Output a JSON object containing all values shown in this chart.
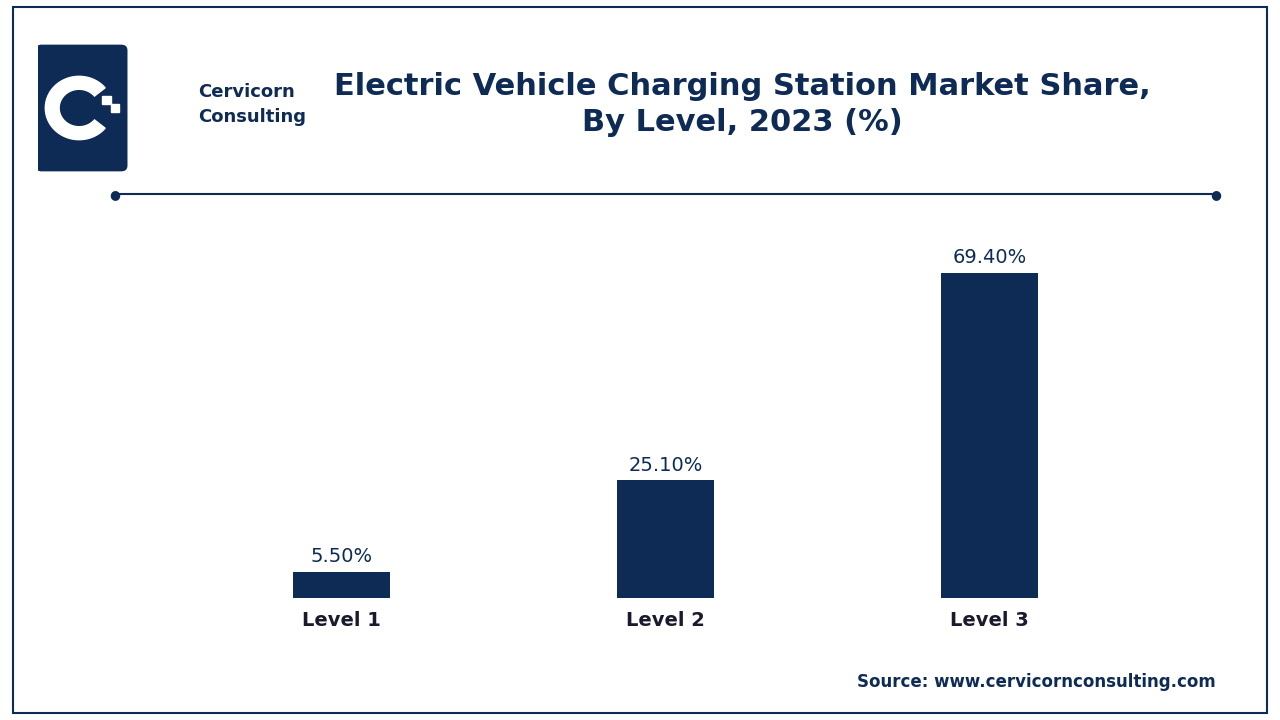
{
  "title": "Electric Vehicle Charging Station Market Share,\nBy Level, 2023 (%)",
  "categories": [
    "Level 1",
    "Level 2",
    "Level 3"
  ],
  "values": [
    5.5,
    25.1,
    69.4
  ],
  "labels": [
    "5.50%",
    "25.10%",
    "69.40%"
  ],
  "bar_color": "#0d2b55",
  "background_color": "#ffffff",
  "title_color": "#0d2b55",
  "source_text": "Source: www.cervicornconsulting.com",
  "source_color": "#0d2b55",
  "tick_color": "#1a1a2e",
  "grid_color": "#d0d0d0",
  "title_fontsize": 22,
  "label_fontsize": 14,
  "tick_fontsize": 14,
  "source_fontsize": 12,
  "bar_width": 0.3,
  "ylim": [
    0,
    80
  ],
  "logo_box_color": "#0d2b55",
  "company_name_color": "#0d2b55",
  "decoration_line_color": "#0d2b55",
  "outer_border_color": "#0d2b55"
}
